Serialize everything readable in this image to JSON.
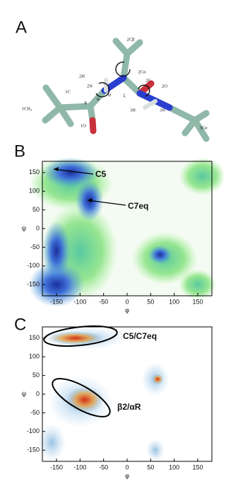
{
  "panel_labels": [
    "A",
    "B",
    "C"
  ],
  "molecule": {
    "atom_labels": [
      "2Cβ",
      "2H",
      "2Cα",
      "2N",
      "1C",
      "2C",
      "2O",
      "θ",
      "φ",
      "ψ",
      "ζ",
      "3H",
      "3N",
      "1CH₃",
      "1O",
      "3Cα"
    ]
  },
  "chart_data": [
    {
      "type": "heatmap",
      "xlabel": "φ",
      "ylabel": "ψ",
      "xlim": [
        -180,
        180
      ],
      "ylim": [
        -180,
        180
      ],
      "xticks": [
        -150,
        -100,
        -50,
        0,
        50,
        100,
        150
      ],
      "yticks": [
        -150,
        -100,
        -50,
        0,
        50,
        100,
        150
      ],
      "annotations": [
        "C5",
        "C7eq"
      ]
    },
    {
      "type": "scatter",
      "xlabel": "φ",
      "ylabel": "ψ",
      "xlim": [
        -180,
        180
      ],
      "ylim": [
        -180,
        180
      ],
      "xticks": [
        -150,
        -100,
        -50,
        0,
        50,
        100,
        150
      ],
      "yticks": [
        -150,
        -100,
        -50,
        0,
        50,
        100,
        150
      ],
      "annotations": [
        "C5/C7eq",
        "β2/αR"
      ]
    }
  ]
}
